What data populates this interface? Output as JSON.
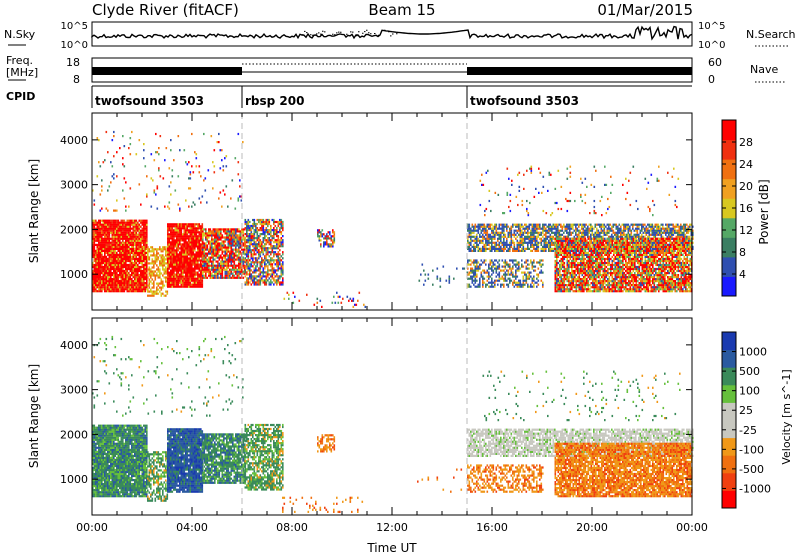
{
  "header": {
    "radar": "Clyde River (fitACF)",
    "beam": "Beam 15",
    "date": "01/Mar/2015"
  },
  "top_panel": {
    "left_label": "N.Sky",
    "left_ticks": [
      "10^5",
      "10^0"
    ],
    "right_ticks": [
      "10^5",
      "10^0"
    ],
    "right_label": "N.Search"
  },
  "freq_panel": {
    "left_label_1": "Freq.",
    "left_label_2": "[MHz]",
    "left_ticks": [
      "18",
      "8"
    ],
    "right_ticks": [
      "60",
      "0"
    ],
    "right_label": "Nave"
  },
  "cpid_panel": {
    "label": "CPID",
    "segments": [
      {
        "name": "twofsound 3503",
        "start": 0,
        "end": 6
      },
      {
        "name": "rbsp 200",
        "start": 6,
        "end": 15
      },
      {
        "name": "twofsound 3503",
        "start": 15,
        "end": 24
      }
    ]
  },
  "colors": {
    "power": [
      "#1a1aff",
      "#2f4fb0",
      "#3a7e62",
      "#55a866",
      "#d8c820",
      "#f0a020",
      "#f07010",
      "#f03010",
      "#ff0000"
    ],
    "velocity": [
      "#ff0000",
      "#f04010",
      "#f07010",
      "#f09818",
      "#c8c8c0",
      "#c8c8c0",
      "#66c03c",
      "#3a8a5a",
      "#2a5aa0",
      "#1a3ab0"
    ]
  },
  "chart_data": [
    {
      "type": "heatmap",
      "name": "power",
      "ylabel": "Slant Range [km]",
      "yticks": [
        "1000",
        "2000",
        "3000",
        "4000"
      ],
      "ylim": [
        200,
        4600
      ],
      "xlim": [
        0,
        24
      ],
      "colorbar": {
        "label": "Power [dB]",
        "ticks": [
          "4",
          "8",
          "12",
          "16",
          "20",
          "24",
          "28"
        ]
      }
    },
    {
      "type": "heatmap",
      "name": "velocity",
      "ylabel": "Slant Range [km]",
      "yticks": [
        "1000",
        "2000",
        "3000",
        "4000"
      ],
      "ylim": [
        200,
        4600
      ],
      "xlim": [
        0,
        24
      ],
      "xticks": [
        "00:00",
        "04:00",
        "08:00",
        "12:00",
        "16:00",
        "20:00",
        "00:00"
      ],
      "xlabel": "Time UT",
      "colorbar": {
        "label": "Velocity [m s^-1]",
        "ticks": [
          "1000",
          "500",
          "100",
          "25",
          "-25",
          "-100",
          "-500",
          "-1000"
        ]
      }
    }
  ]
}
